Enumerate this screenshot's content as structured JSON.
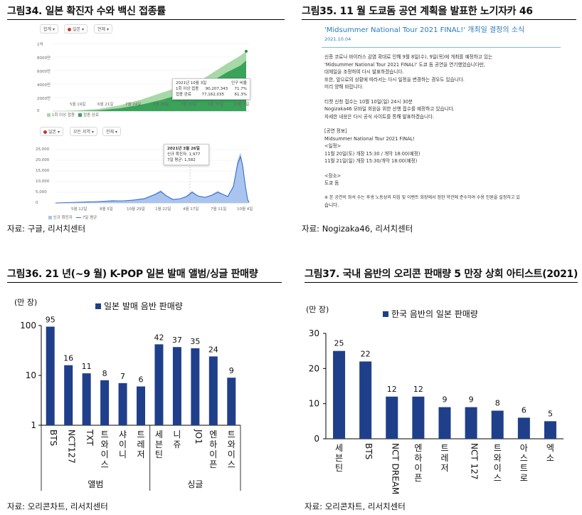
{
  "figures": {
    "fig34": {
      "title": "그림34. 일본 확진자 수와 백신 접종률",
      "source": "자료: 구글, 리서치센터",
      "vaccine_panel": {
        "chips": [
          "합계 ▾",
          "일본 ▾",
          "전체 ▾"
        ],
        "y_ticks": [
          "1억",
          "8000만",
          "6000만",
          "4000만",
          "2000만",
          "0"
        ],
        "x_ticks": [
          "5월 19일",
          "6월 21일",
          "7월 24일",
          "8월 26일",
          "7월 29일",
          "8월 31일",
          "10월 3일"
        ],
        "tooltip": {
          "date": "2021년 10월 3일",
          "col_header": "인구 비율",
          "row1_label": "1회 이상 접종",
          "row1_value": "90,207,343",
          "row1_pct": "71.7%",
          "row2_label": "접종 완료",
          "row2_value": "77,162,035",
          "row2_pct": "61.3%"
        },
        "legend": [
          "1회 이상 접종",
          "접종 완료"
        ]
      },
      "cases_panel": {
        "chips": [
          "일본 ▾",
          "모든 지역 ▾",
          "전체 ▾"
        ],
        "y_ticks": [
          "25,000",
          "20,000",
          "15,000",
          "10,000",
          "5,000",
          "0"
        ],
        "x_ticks": [
          "5월 12일",
          "8월 5일",
          "10월 29일",
          "1월 22일",
          "4월 17일",
          "7월 11일",
          "10월 4일"
        ],
        "tooltip": {
          "date": "2021년 3월 26일",
          "line1": "신규 확진자: 1,977",
          "line2": "7일 평균: 1,582"
        },
        "legend": [
          "신규 확진자",
          "7일 평균"
        ]
      }
    },
    "fig35": {
      "title": "그림35. 11 월 도쿄돔 공연 계획을  발표한 노기자카 46",
      "source": "자료: Nogizaka46, 리서치센터",
      "notice_title": "'Midsummer National Tour 2021 FINAL!' 개최일 결정의 소식",
      "notice_date": "2021.10.04",
      "lines": [
        "신종 코로나 바이러스 감염 확대로 인해 9월 8일(수), 9일(목)에 개최를 예정하고 있는",
        "'Midsummer National Tour 2021 FINAL!' 도쿄 돔 공연을 연기했었습니다만,",
        "대체일을 조정하여 다시 발표하겠습니다.",
        "또한, 앞으로의 상황에 따라서는 다시 일정을 변경하는 경우도 있습니다.",
        "미리 양해 바랍니다.",
        "",
        "티켓 신청 접수는 10월 10일(일) 24시 30분",
        "Nogizaka46 모바일 회원을 위한 선행 접수를 예정하고 있습니다.",
        "자세한 내용은 다시 공식 사이트를 통해 발표하겠습니다.",
        "",
        "[공연 정보]",
        "Midsummer National Tour 2021 FINAL!",
        "<일정>",
        "11월 20일(토) 개장 15:30 / 개막 18:00(예정)",
        "11월 21일(일) 개장 15:30/개막 18:00(예정)",
        "",
        "<장소>",
        "도쿄 돔",
        "",
        "※ 본 공연의 좌석 수는 후생 노동성의 지침 및 이벤트 회장에서 정한 약관에 준수하여 수용 인원을 설정하고 있",
        "습니다."
      ]
    },
    "fig36": {
      "title": "그림36. 21 년(~9 월) K-POP 일본 발매 앨범/싱글 판매량",
      "source": "자료: 오리콘차트, 리서치센터",
      "unit": "(만 장)",
      "group_labels": [
        "앨범",
        "싱글"
      ]
    },
    "fig37": {
      "title": "그림37. 국내 음반의 오리콘 판매량 5 만장 상회 아티스트(2021)",
      "source": "자료: 오리콘차트, 리서치센터",
      "unit": "(만 장)"
    }
  },
  "chart_data": [
    {
      "id": "fig36",
      "type": "bar",
      "title": "일본 발매 음반 판매량",
      "categories": [
        "BTS",
        "NCT127",
        "TXT",
        "트와이스",
        "샤이니",
        "트레저",
        "세븐틴",
        "니쥬",
        "JO1",
        "엔하이픈",
        "트와이스"
      ],
      "groups": [
        "앨범",
        "앨범",
        "앨범",
        "앨범",
        "앨범",
        "앨범",
        "싱글",
        "싱글",
        "싱글",
        "싱글",
        "싱글"
      ],
      "series": [
        {
          "name": "일본 발매 음반 판매량",
          "values": [
            95,
            16,
            11,
            8,
            7,
            6,
            42,
            37,
            35,
            24,
            9
          ]
        }
      ],
      "yscale": "log",
      "ylim": [
        1,
        100
      ],
      "y_ticks": [
        1,
        10,
        100
      ],
      "ylabel": "(만 장)",
      "color": "#1f3f8a"
    },
    {
      "id": "fig37",
      "type": "bar",
      "title": "한국 음반의 일본 판매량",
      "categories": [
        "세븐틴",
        "BTS",
        "NCT DREAM",
        "엔하이픈",
        "트레저",
        "NCT 127",
        "트와이스",
        "아스트로",
        "엑소"
      ],
      "series": [
        {
          "name": "한국 음반의 일본 판매량",
          "values": [
            25,
            22,
            12,
            12,
            9,
            9,
            8,
            6,
            5
          ]
        }
      ],
      "ylim": [
        0,
        30
      ],
      "y_ticks": [
        0,
        10,
        20,
        30
      ],
      "ylabel": "(만 장)",
      "color": "#1f3f8a"
    }
  ]
}
